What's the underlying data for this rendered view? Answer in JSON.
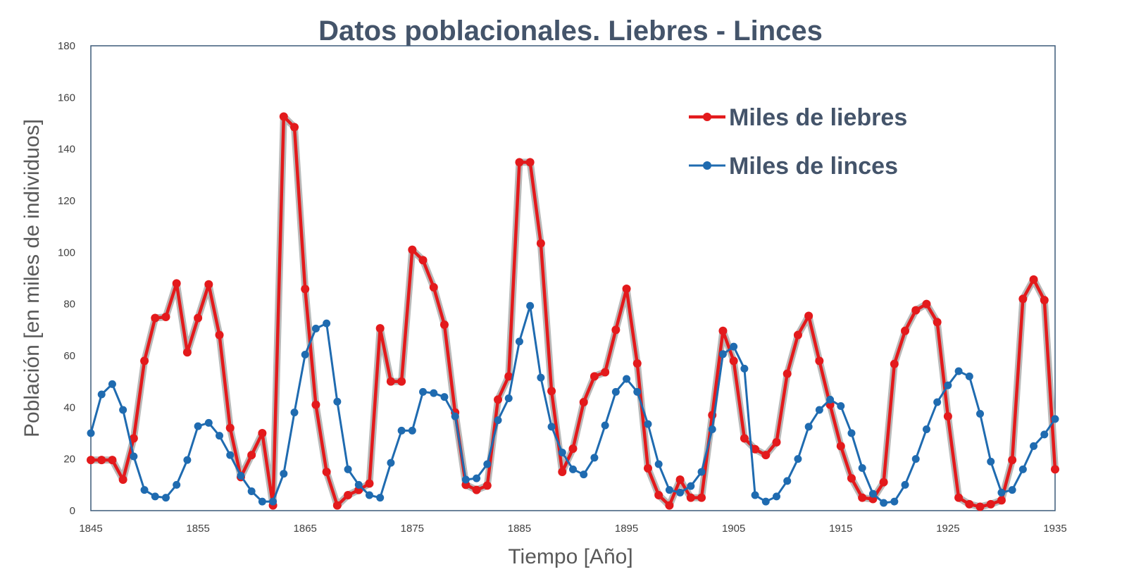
{
  "chart_data": {
    "type": "line",
    "title": "Datos poblacionales. Liebres - Linces",
    "xlabel": "Tiempo [Año]",
    "ylabel": "Población [en miles de individuos]",
    "xlim": [
      1845,
      1935
    ],
    "ylim": [
      0,
      180
    ],
    "x_ticks": [
      "1845",
      "1855",
      "1865",
      "1875",
      "1885",
      "1895",
      "1905",
      "1915",
      "1925",
      "1935"
    ],
    "y_ticks": [
      "0",
      "20",
      "40",
      "60",
      "80",
      "100",
      "120",
      "140",
      "160",
      "180"
    ],
    "grid": false,
    "legend_position": "top-right",
    "x": [
      1845,
      1846,
      1847,
      1848,
      1849,
      1850,
      1851,
      1852,
      1853,
      1854,
      1855,
      1856,
      1857,
      1858,
      1859,
      1860,
      1861,
      1862,
      1863,
      1864,
      1865,
      1866,
      1867,
      1868,
      1869,
      1870,
      1871,
      1872,
      1873,
      1874,
      1875,
      1876,
      1877,
      1878,
      1879,
      1880,
      1881,
      1882,
      1883,
      1884,
      1885,
      1886,
      1887,
      1888,
      1889,
      1890,
      1891,
      1892,
      1893,
      1894,
      1895,
      1896,
      1897,
      1898,
      1899,
      1900,
      1901,
      1902,
      1903,
      1904,
      1905,
      1906,
      1907,
      1908,
      1909,
      1910,
      1911,
      1912,
      1913,
      1914,
      1915,
      1916,
      1917,
      1918,
      1919,
      1920,
      1921,
      1922,
      1923,
      1924,
      1925,
      1926,
      1927,
      1928,
      1929,
      1930,
      1931,
      1932,
      1933,
      1934,
      1935
    ],
    "series": [
      {
        "name": "Miles de liebres",
        "color": "#e31a1c",
        "values": [
          19.6,
          19.6,
          19.6,
          12,
          28,
          58,
          74.6,
          75,
          88,
          61.3,
          74.6,
          87.6,
          68,
          32,
          13,
          21.5,
          30,
          2,
          152.6,
          148.5,
          85.8,
          41,
          15,
          2,
          6,
          8,
          10.5,
          70.6,
          50,
          50,
          101,
          97,
          86.5,
          72,
          38,
          10,
          8,
          9.7,
          43,
          52,
          134.9,
          134.9,
          103.5,
          46.3,
          15,
          24,
          42,
          52,
          53.6,
          70,
          85.9,
          57,
          16.4,
          6,
          2,
          12,
          5,
          5,
          37,
          69.6,
          58,
          28,
          23.8,
          21.5,
          26.5,
          53,
          68,
          75.4,
          58,
          41,
          25,
          12.5,
          5,
          4.5,
          11,
          56.8,
          69.6,
          77.6,
          80,
          73,
          36.5,
          5,
          2.5,
          1.5,
          2.5,
          4,
          19.6,
          82,
          89.5,
          81.5,
          16
        ]
      },
      {
        "name": "Miles de linces",
        "color": "#1f6bb0",
        "values": [
          30,
          45,
          49,
          39,
          21,
          8,
          5.5,
          5,
          10,
          19.6,
          32.7,
          34,
          29,
          21.5,
          13.5,
          7.5,
          3.5,
          3.5,
          14.3,
          38,
          60.4,
          70.5,
          72.5,
          42.2,
          16,
          10,
          6,
          5,
          18.5,
          31,
          31,
          46,
          45.5,
          44,
          36.5,
          12,
          12.5,
          18,
          35,
          43.5,
          65.5,
          79.3,
          51.5,
          32.5,
          22.5,
          16,
          14,
          20.5,
          33,
          46,
          51,
          46,
          33.5,
          18,
          8,
          7,
          9.5,
          15,
          31.5,
          60.6,
          63.5,
          55,
          6,
          3.5,
          5.5,
          11.5,
          20,
          32.5,
          39,
          43,
          40.5,
          30,
          16.5,
          6.5,
          3,
          3.5,
          10,
          20,
          31.5,
          42,
          48.5,
          54,
          52,
          37.5,
          19,
          7,
          8,
          16,
          25,
          29.5,
          35.5
        ]
      }
    ]
  }
}
